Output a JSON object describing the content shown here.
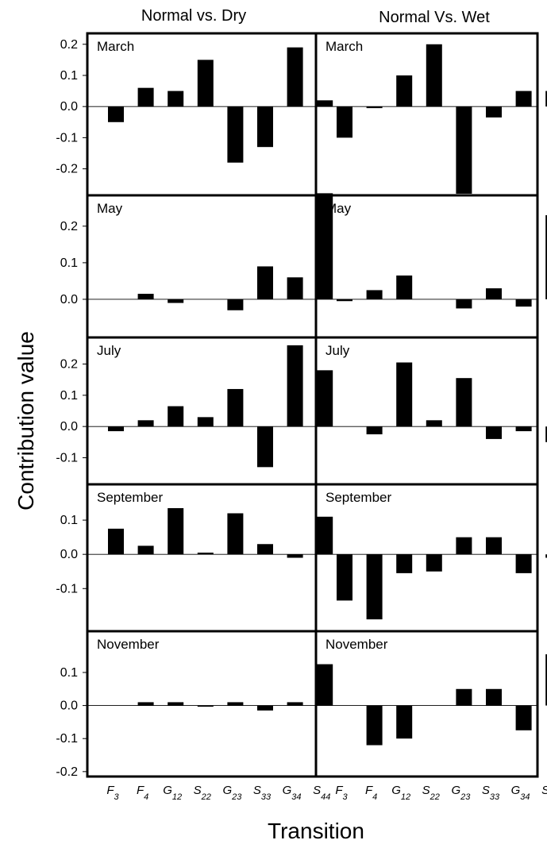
{
  "chart_data": {
    "type": "bar",
    "columns": [
      "Normal vs. Dry",
      "Normal Vs. Wet"
    ],
    "ylabel": "Contribution value",
    "xlabel": "Transition",
    "categories": [
      {
        "main": "F",
        "sub": "3"
      },
      {
        "main": "F",
        "sub": "4"
      },
      {
        "main": "G",
        "sub": "12"
      },
      {
        "main": "S",
        "sub": "22"
      },
      {
        "main": "G",
        "sub": "23"
      },
      {
        "main": "S",
        "sub": "33"
      },
      {
        "main": "G",
        "sub": "34"
      },
      {
        "main": "S",
        "sub": "44"
      }
    ],
    "rows": [
      {
        "month": "March",
        "ylim": [
          -0.28,
          0.23
        ],
        "yticks": [
          -0.2,
          -0.1,
          0.0,
          0.1,
          0.2
        ],
        "ytick_labels": [
          "-0.2",
          "-0.1",
          "0.0",
          "0.1",
          "0.2"
        ],
        "panels": [
          [
            -0.05,
            0.06,
            0.05,
            0.15,
            -0.18,
            -0.13,
            0.19,
            0.02
          ],
          [
            -0.1,
            -0.005,
            0.1,
            0.2,
            -0.28,
            -0.035,
            0.05,
            0.05
          ]
        ]
      },
      {
        "month": "May",
        "ylim": [
          -0.1,
          0.28
        ],
        "yticks": [
          0.0,
          0.1,
          0.2
        ],
        "ytick_labels": [
          "0.0",
          "0.1",
          "0.2"
        ],
        "panels": [
          [
            0.0,
            0.015,
            -0.01,
            0.0,
            -0.03,
            0.09,
            0.06,
            0.29
          ],
          [
            -0.005,
            0.025,
            0.065,
            0.0,
            -0.025,
            0.03,
            -0.02,
            0.23
          ]
        ]
      },
      {
        "month": "July",
        "ylim": [
          -0.18,
          0.28
        ],
        "yticks": [
          -0.1,
          0.0,
          0.1,
          0.2
        ],
        "ytick_labels": [
          "-0.1",
          "0.0",
          "0.1",
          "0.2"
        ],
        "panels": [
          [
            -0.015,
            0.02,
            0.065,
            0.03,
            0.12,
            -0.13,
            0.26,
            0.18
          ],
          [
            0.0,
            -0.025,
            0.205,
            0.02,
            0.155,
            -0.04,
            -0.015,
            -0.05
          ]
        ]
      },
      {
        "month": "September",
        "ylim": [
          -0.22,
          0.2
        ],
        "yticks": [
          -0.1,
          0.0,
          0.1
        ],
        "ytick_labels": [
          "-0.1",
          "0.0",
          "0.1"
        ],
        "panels": [
          [
            0.075,
            0.025,
            0.135,
            0.005,
            0.12,
            0.03,
            -0.01,
            0.11
          ],
          [
            -0.135,
            -0.19,
            -0.055,
            -0.05,
            0.05,
            0.05,
            -0.055,
            -0.01
          ]
        ]
      },
      {
        "month": "November",
        "ylim": [
          -0.21,
          0.22
        ],
        "yticks": [
          -0.2,
          -0.1,
          0.0,
          0.1
        ],
        "ytick_labels": [
          "-0.2",
          "-0.1",
          "0.0",
          "0.1"
        ],
        "panels": [
          [
            0.0,
            0.01,
            0.01,
            -0.002,
            0.01,
            -0.015,
            0.01,
            0.125
          ],
          [
            0.0,
            -0.12,
            -0.1,
            0.0,
            0.05,
            0.05,
            -0.075,
            0.155
          ]
        ]
      }
    ]
  }
}
